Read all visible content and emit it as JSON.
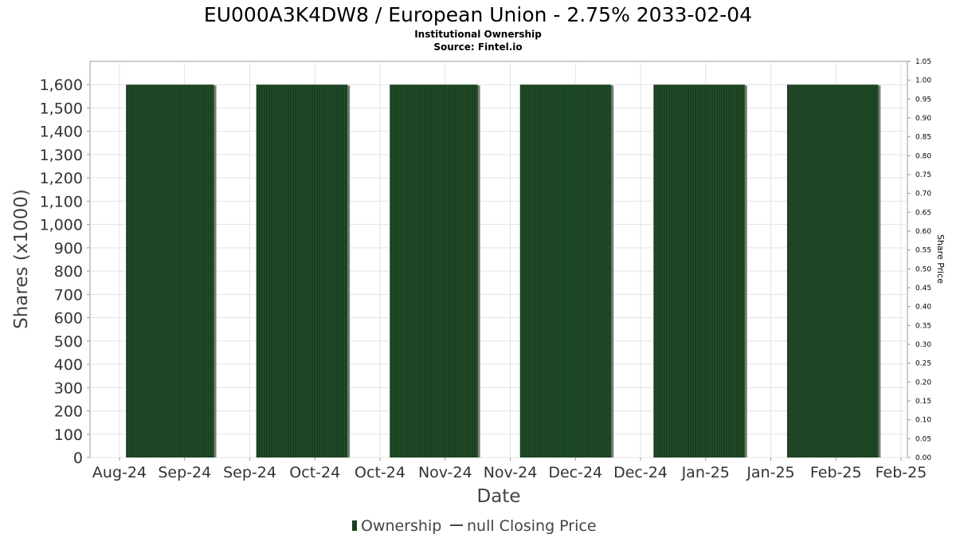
{
  "chart_data": {
    "type": "bar",
    "title": "EU000A3K4DW8 / European Union - 2.75% 2033-02-04",
    "subtitle_lines": [
      "Institutional Ownership",
      "Source: Fintel.io"
    ],
    "xlabel": "Date",
    "ylabel": "Shares (x1000)",
    "y2label": "Share Price",
    "ylim": [
      0,
      1700
    ],
    "y2lim": [
      0,
      1.05
    ],
    "yticks": [
      "0",
      "100",
      "200",
      "300",
      "400",
      "500",
      "600",
      "700",
      "800",
      "900",
      "1,000",
      "1,100",
      "1,200",
      "1,300",
      "1,400",
      "1,500",
      "1,600"
    ],
    "y2ticks": [
      "0.00",
      "0.05",
      "0.10",
      "0.15",
      "0.20",
      "0.25",
      "0.30",
      "0.35",
      "0.40",
      "0.45",
      "0.50",
      "0.55",
      "0.60",
      "0.65",
      "0.70",
      "0.75",
      "0.80",
      "0.85",
      "0.90",
      "0.95",
      "1.00",
      "1.05"
    ],
    "xticks": [
      "Aug-24",
      "Sep-24",
      "Sep-24",
      "Oct-24",
      "Oct-24",
      "Nov-24",
      "Nov-24",
      "Dec-24",
      "Dec-24",
      "Jan-25",
      "Jan-25",
      "Feb-25",
      "Feb-25"
    ],
    "grid": true,
    "legend_position": "bottom-center",
    "series": [
      {
        "name": "Ownership",
        "color": "#1a4020",
        "blocks": [
          {
            "start_tick": 0.1,
            "end_tick": 1.45,
            "value": 1600
          },
          {
            "start_tick": 2.1,
            "end_tick": 3.5,
            "value": 1600
          },
          {
            "start_tick": 4.15,
            "end_tick": 5.5,
            "value": 1600
          },
          {
            "start_tick": 6.15,
            "end_tick": 7.55,
            "value": 1600
          },
          {
            "start_tick": 8.2,
            "end_tick": 9.6,
            "value": 1600
          },
          {
            "start_tick": 10.25,
            "end_tick": 11.65,
            "value": 1600
          }
        ]
      },
      {
        "name": "null Closing Price",
        "color": "#444444",
        "values": []
      }
    ]
  },
  "legend": {
    "ownership_label": "Ownership",
    "price_label": "null Closing Price"
  }
}
